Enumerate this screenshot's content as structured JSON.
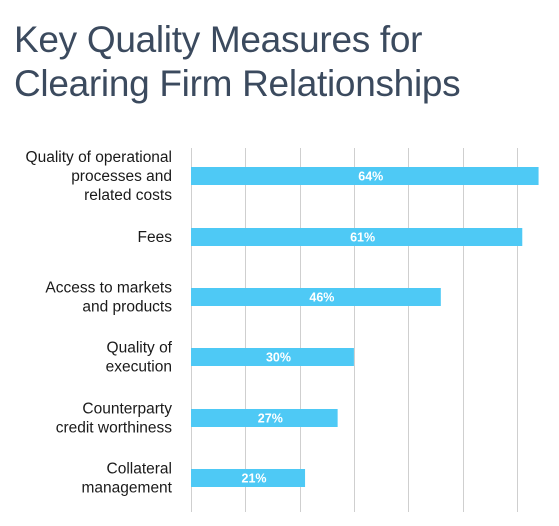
{
  "chart_data": {
    "type": "bar",
    "orientation": "horizontal",
    "title_lines": [
      "Key Quality Measures for",
      "Clearing Firm Relationships"
    ],
    "categories": [
      [
        "Quality of operational",
        "processes and",
        "related costs"
      ],
      [
        "Fees"
      ],
      [
        "Access to markets",
        "and products"
      ],
      [
        "Quality of",
        "execution"
      ],
      [
        "Counterparty",
        "credit worthiness"
      ],
      [
        "Collateral",
        "management"
      ]
    ],
    "values": [
      64,
      61,
      46,
      30,
      27,
      21
    ],
    "value_labels": [
      "64%",
      "61%",
      "46%",
      "30%",
      "27%",
      "21%"
    ],
    "xlim": [
      0,
      65
    ],
    "grid": true,
    "bar_color": "#4ec9f5"
  }
}
